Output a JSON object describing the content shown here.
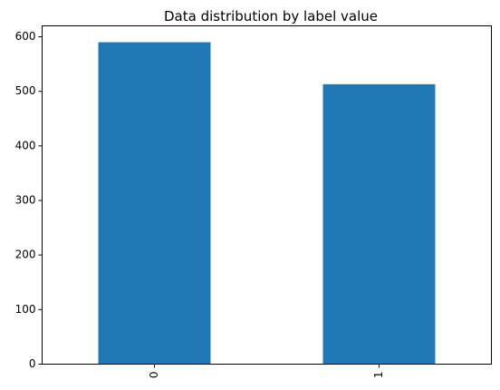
{
  "chart_data": {
    "type": "bar",
    "title": "Data distribution by label value",
    "xlabel": "",
    "ylabel": "",
    "categories": [
      "0",
      "1"
    ],
    "values": [
      590,
      513
    ],
    "ylim": [
      0,
      620
    ],
    "yticks": [
      0,
      100,
      200,
      300,
      400,
      500,
      600
    ],
    "x_tick_rotation": "vertical",
    "bar_color": "#1f77b4",
    "grid": false,
    "legend": "none"
  }
}
